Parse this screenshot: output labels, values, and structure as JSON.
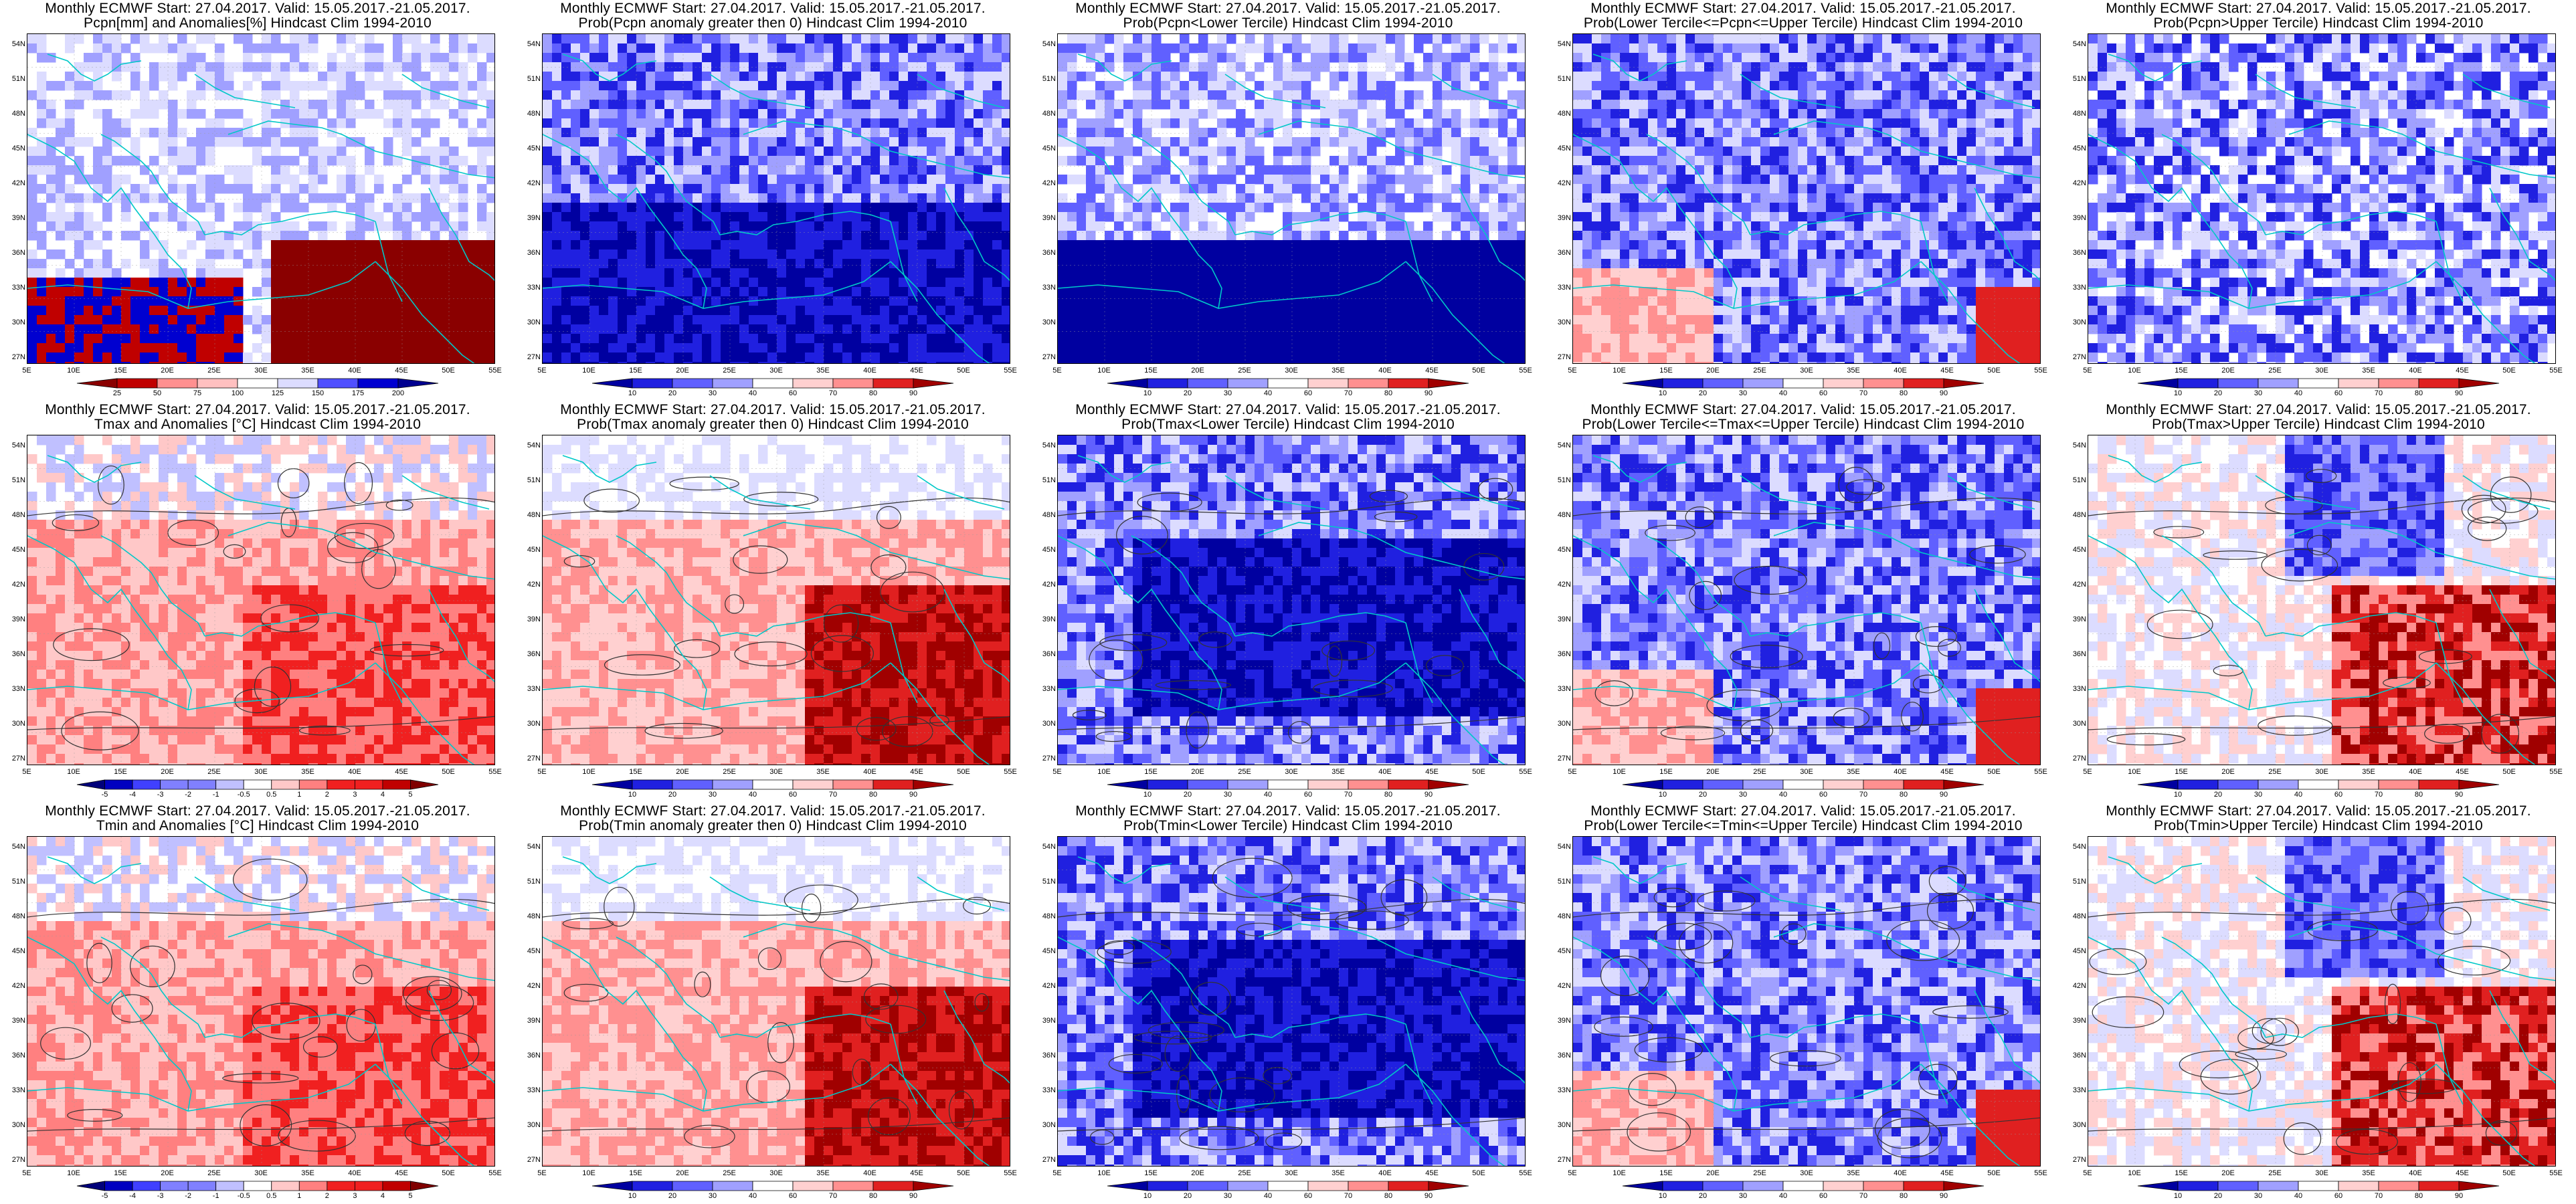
{
  "colors": {
    "precip_anom": [
      "#8a0000",
      "#c00000",
      "#e03030",
      "#ff9090",
      "#ffc0c0",
      "#ffffff",
      "#dcdcff",
      "#a0a0ff",
      "#5050ff",
      "#0000d0",
      "#000090"
    ],
    "prob_red": [
      "#0000a0",
      "#2020e0",
      "#6060ff",
      "#a0a0ff",
      "#dcdcff",
      "#ffffff",
      "#ffd0d0",
      "#ff9090",
      "#e02020",
      "#a00000"
    ],
    "temp_anom": [
      "#00007a",
      "#0000c0",
      "#4040ff",
      "#8080ff",
      "#c0c0ff",
      "#ffffff",
      "#ffc8c8",
      "#ff8080",
      "#f02020",
      "#c00000",
      "#800000"
    ],
    "coast": "#00c8c8",
    "contour": "#333333"
  },
  "axes": {
    "lat_labels": [
      "54N",
      "51N",
      "48N",
      "45N",
      "42N",
      "39N",
      "36N",
      "33N",
      "30N",
      "27N"
    ],
    "lon_labels": [
      "5E",
      "10E",
      "15E",
      "20E",
      "25E",
      "30E",
      "35E",
      "40E",
      "45E",
      "50E",
      "55E"
    ]
  },
  "panels": [
    {
      "id": "p1",
      "title1": "Monthly ECMWF Start: 27.04.2017. Valid: 15.05.2017.-21.05.2017.",
      "title2": "Pcpn[mm] and Anomalies[%]  Hindcast Clim 1994-2010",
      "palette": "precip_anom",
      "cbar_labels": [
        "25",
        "50",
        "75",
        "100",
        "125",
        "150",
        "175",
        "200"
      ],
      "dominant": "precip_mix",
      "contours": false
    },
    {
      "id": "p2",
      "title1": "Monthly ECMWF Start: 27.04.2017. Valid: 15.05.2017.-21.05.2017.",
      "title2": "Prob(Pcpn anomaly greater then 0) Hindcast Clim 1994-2010",
      "palette": "prob_red",
      "cbar_labels": [
        "10",
        "20",
        "30",
        "40",
        "60",
        "70",
        "80",
        "90"
      ],
      "dominant": "blue",
      "contours": false
    },
    {
      "id": "p3",
      "title1": "Monthly ECMWF Start: 27.04.2017. Valid: 15.05.2017.-21.05.2017.",
      "title2": "Prob(Pcpn<Lower Tercile) Hindcast Clim 1994-2010",
      "palette": "prob_red",
      "cbar_labels": [
        "10",
        "20",
        "30",
        "40",
        "60",
        "70",
        "80",
        "90"
      ],
      "dominant": "blue_south",
      "contours": false
    },
    {
      "id": "p4",
      "title1": "Monthly ECMWF Start: 27.04.2017. Valid: 15.05.2017.-21.05.2017.",
      "title2": "Prob(Lower Tercile<=Pcpn<=Upper Tercile) Hindcast Clim 1994-2010",
      "palette": "prob_red",
      "cbar_labels": [
        "10",
        "20",
        "30",
        "40",
        "60",
        "70",
        "80",
        "90"
      ],
      "dominant": "blue_mixed",
      "contours": false
    },
    {
      "id": "p5",
      "title1": "Monthly ECMWF Start: 27.04.2017. Valid: 15.05.2017.-21.05.2017.",
      "title2": "Prob(Pcpn>Upper Tercile) Hindcast Clim 1994-2010",
      "palette": "prob_red",
      "cbar_labels": [
        "10",
        "20",
        "30",
        "40",
        "60",
        "70",
        "80",
        "90"
      ],
      "dominant": "blue_light",
      "contours": false
    },
    {
      "id": "p6",
      "title1": "Monthly ECMWF Start: 27.04.2017. Valid: 15.05.2017.-21.05.2017.",
      "title2": "Tmax and Anomalies [°C] Hindcast Clim 1994-2010",
      "palette": "temp_anom",
      "cbar_labels": [
        "-5",
        "-4",
        "-3",
        "-2",
        "-1",
        "-0.5",
        "0.5",
        "1",
        "2",
        "3",
        "4",
        "5"
      ],
      "dominant": "red_light",
      "contours": true
    },
    {
      "id": "p7",
      "title1": "Monthly ECMWF Start: 27.04.2017. Valid: 15.05.2017.-21.05.2017.",
      "title2": "Prob(Tmax anomaly greater then 0) Hindcast Clim 1994-2010",
      "palette": "prob_red",
      "cbar_labels": [
        "10",
        "20",
        "30",
        "40",
        "60",
        "70",
        "80",
        "90"
      ],
      "dominant": "red",
      "contours": true
    },
    {
      "id": "p8",
      "title1": "Monthly ECMWF Start: 27.04.2017. Valid: 15.05.2017.-21.05.2017.",
      "title2": "Prob(Tmax<Lower Tercile) Hindcast Clim 1994-2010",
      "palette": "prob_red",
      "cbar_labels": [
        "10",
        "20",
        "30",
        "40",
        "60",
        "70",
        "80",
        "90"
      ],
      "dominant": "blue_deep",
      "contours": true
    },
    {
      "id": "p9",
      "title1": "Monthly ECMWF Start: 27.04.2017. Valid: 15.05.2017.-21.05.2017.",
      "title2": "Prob(Lower Tercile<=Tmax<=Upper Tercile) Hindcast Clim 1994-2010",
      "palette": "prob_red",
      "cbar_labels": [
        "10",
        "20",
        "30",
        "40",
        "60",
        "70",
        "80",
        "90"
      ],
      "dominant": "blue_mixed",
      "contours": true
    },
    {
      "id": "p10",
      "title1": "Monthly ECMWF Start: 27.04.2017. Valid: 15.05.2017.-21.05.2017.",
      "title2": "Prob(Tmax>Upper Tercile) Hindcast Clim 1994-2010",
      "palette": "prob_red",
      "cbar_labels": [
        "10",
        "20",
        "30",
        "40",
        "60",
        "70",
        "80",
        "90"
      ],
      "dominant": "red_mixed",
      "contours": true
    },
    {
      "id": "p11",
      "title1": "Monthly ECMWF Start: 27.04.2017. Valid: 15.05.2017.-21.05.2017.",
      "title2": "Tmin and Anomalies [°C] Hindcast Clim 1994-2010",
      "palette": "temp_anom",
      "cbar_labels": [
        "-5",
        "-4",
        "-3",
        "-2",
        "-1",
        "-0.5",
        "0.5",
        "1",
        "2",
        "3",
        "4",
        "5"
      ],
      "dominant": "red_light",
      "contours": true
    },
    {
      "id": "p12",
      "title1": "Monthly ECMWF Start: 27.04.2017. Valid: 15.05.2017.-21.05.2017.",
      "title2": "Prob(Tmin anomaly greater then 0) Hindcast Clim 1994-2010",
      "palette": "prob_red",
      "cbar_labels": [
        "10",
        "20",
        "30",
        "40",
        "60",
        "70",
        "80",
        "90"
      ],
      "dominant": "red",
      "contours": true
    },
    {
      "id": "p13",
      "title1": "Monthly ECMWF Start: 27.04.2017. Valid: 15.05.2017.-21.05.2017.",
      "title2": "Prob(Tmin<Lower Tercile) Hindcast Clim 1994-2010",
      "palette": "prob_red",
      "cbar_labels": [
        "10",
        "20",
        "30",
        "40",
        "60",
        "70",
        "80",
        "90"
      ],
      "dominant": "blue_deep",
      "contours": true
    },
    {
      "id": "p14",
      "title1": "Monthly ECMWF Start: 27.04.2017. Valid: 15.05.2017.-21.05.2017.",
      "title2": "Prob(Lower Tercile<=Tmin<=Upper Tercile) Hindcast Clim 1994-2010",
      "palette": "prob_red",
      "cbar_labels": [
        "10",
        "20",
        "30",
        "40",
        "60",
        "70",
        "80",
        "90"
      ],
      "dominant": "blue_mixed",
      "contours": true
    },
    {
      "id": "p15",
      "title1": "Monthly ECMWF Start: 27.04.2017. Valid: 15.05.2017.-21.05.2017.",
      "title2": "Prob(Tmin>Upper Tercile) Hindcast Clim 1994-2010",
      "palette": "prob_red",
      "cbar_labels": [
        "10",
        "20",
        "30",
        "40",
        "60",
        "70",
        "80",
        "90"
      ],
      "dominant": "red_mixed",
      "contours": true
    }
  ]
}
